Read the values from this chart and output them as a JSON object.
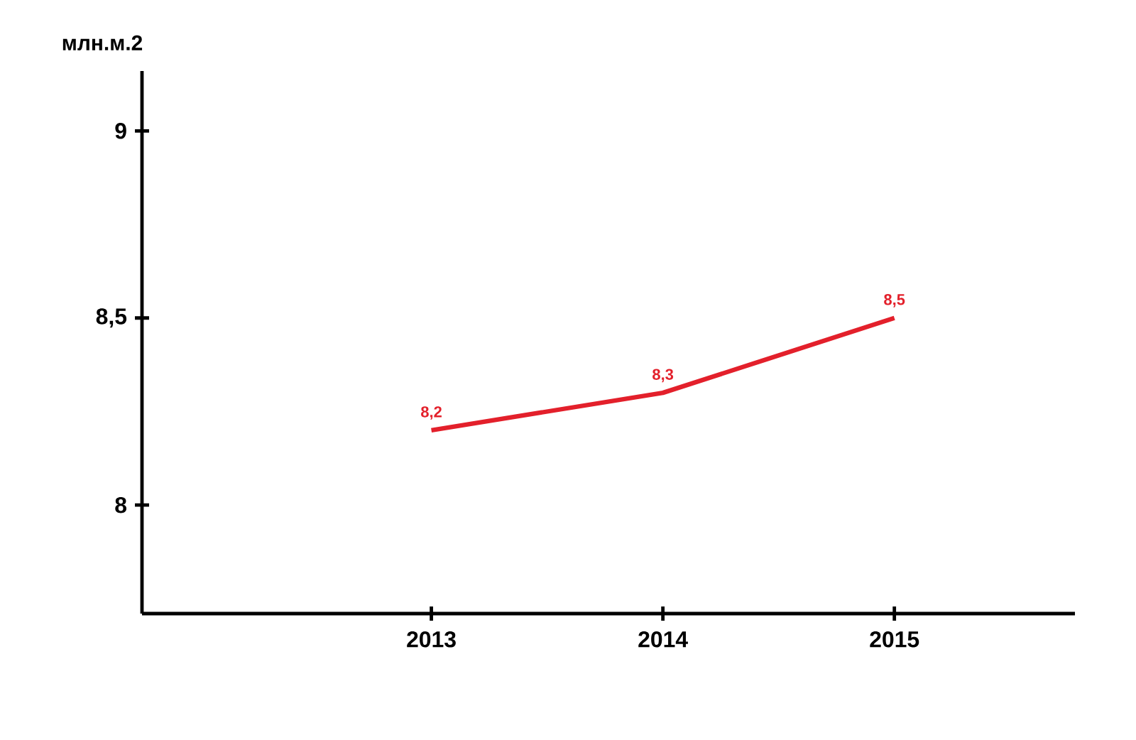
{
  "chart_data": {
    "type": "line",
    "ylabel": "млн.м.2",
    "categories": [
      "2013",
      "2014",
      "2015"
    ],
    "series": [
      {
        "color": "#e3202b",
        "values": [
          8.2,
          8.3,
          8.5
        ],
        "value_labels": [
          "8,2",
          "8,3",
          "8,5"
        ]
      }
    ],
    "ylim": [
      7.71,
      9.16
    ],
    "yticks": [
      8,
      {
        "value": 8.5,
        "label": "8,5"
      },
      9
    ],
    "grid": false,
    "marker": "none",
    "line_style": "solid"
  }
}
